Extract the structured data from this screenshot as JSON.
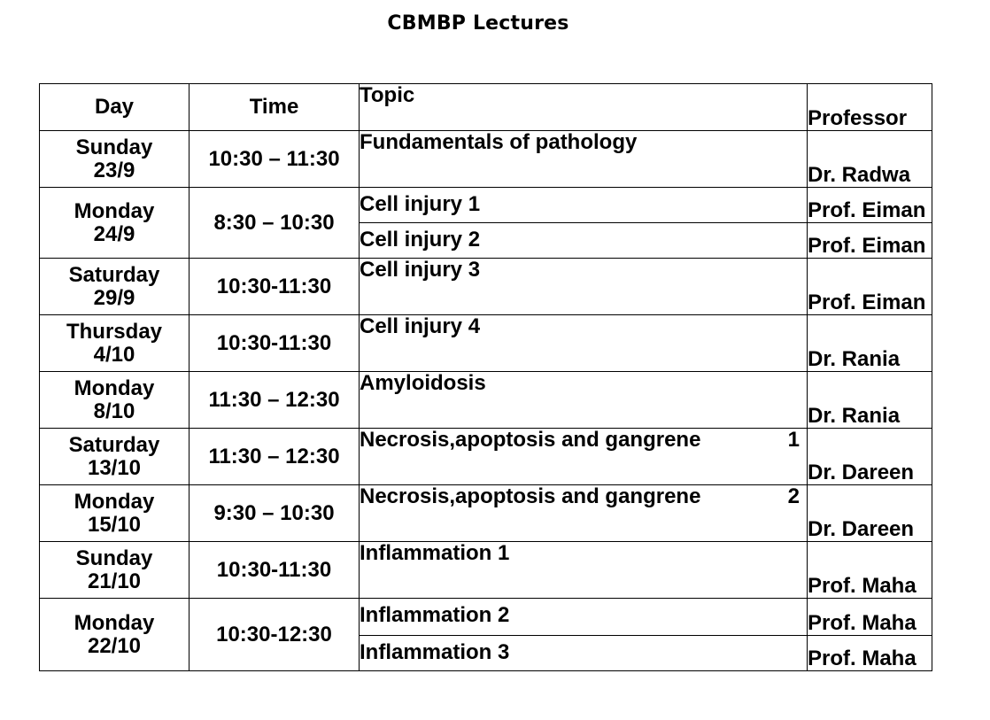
{
  "title": "CBMBP Lectures",
  "table": {
    "headers": {
      "day": "Day",
      "time": "Time",
      "topic": "Topic",
      "professor": "Professor"
    },
    "rows": [
      {
        "day": "Sunday",
        "date": "23/9",
        "time": "10:30 – 11:30",
        "topic": "Fundamentals of pathology",
        "professor": "Dr. Radwa"
      },
      {
        "day": "Monday",
        "date": "24/9",
        "time": "8:30 – 10:30",
        "topic": "Cell injury 1",
        "professor": "Prof. Eiman"
      },
      {
        "topic": "Cell injury 2",
        "professor": "Prof. Eiman"
      },
      {
        "day": "Saturday",
        "date": "29/9",
        "time": "10:30-11:30",
        "topic": "Cell injury 3",
        "professor": "Prof. Eiman"
      },
      {
        "day": "Thursday",
        "date": "4/10",
        "time": "10:30-11:30",
        "topic": "Cell injury 4",
        "professor": "Dr. Rania"
      },
      {
        "day": "Monday",
        "date": "8/10",
        "time": "11:30 – 12:30",
        "topic": "Amyloidosis",
        "professor": "Dr. Rania"
      },
      {
        "day": "Saturday",
        "date": "13/10",
        "time": "11:30 – 12:30",
        "topic": "Necrosis,apoptosis and gangrene",
        "topic_number": "1",
        "professor": "Dr. Dareen"
      },
      {
        "day": "Monday",
        "date": "15/10",
        "time": "9:30 – 10:30",
        "topic": "Necrosis,apoptosis and gangrene",
        "topic_number": "2",
        "professor": "Dr. Dareen"
      },
      {
        "day": "Sunday",
        "date": "21/10",
        "time": "10:30-11:30",
        "topic": "Inflammation 1",
        "professor": "Prof. Maha"
      },
      {
        "day": "Monday",
        "date": "22/10",
        "time": "10:30-12:30",
        "topic": "Inflammation 2",
        "professor": "Prof. Maha"
      },
      {
        "topic": "Inflammation 3",
        "professor": "Prof. Maha"
      }
    ]
  }
}
